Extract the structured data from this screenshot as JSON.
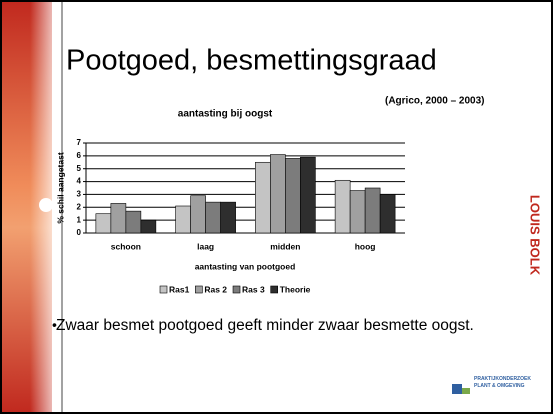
{
  "title": "Pootgoed, besmettingsgraad",
  "source": "(Agrico, 2000 – 2003)",
  "bullet": "Zwaar besmet pootgoed geeft minder zwaar besmette oogst.",
  "logo_right": "LOUIS BOLK",
  "logo_bottom": "PRAKTIJKONDERZOEK PLANT & OMGEVING",
  "chart_data": {
    "type": "bar",
    "title": "aantasting bij oogst",
    "xlabel": "aantasting van pootgoed",
    "ylabel": "% schil aangetast",
    "categories": [
      "schoon",
      "laag",
      "midden",
      "hoog"
    ],
    "series": [
      {
        "name": "Ras1",
        "color": "#c4c4c4",
        "values": [
          1.5,
          2.1,
          5.5,
          4.1
        ]
      },
      {
        "name": "Ras 2",
        "color": "#a0a0a0",
        "values": [
          2.3,
          2.9,
          6.1,
          3.3
        ]
      },
      {
        "name": "Ras 3",
        "color": "#7c7c7c",
        "values": [
          1.7,
          2.4,
          5.8,
          3.5
        ]
      },
      {
        "name": "Theorie",
        "color": "#2e2e2e",
        "values": [
          1.0,
          2.4,
          5.9,
          3.0
        ]
      }
    ],
    "ylim": [
      0,
      7
    ],
    "yticks": [
      0,
      1,
      2,
      3,
      4,
      5,
      6,
      7
    ],
    "grid": true,
    "legend": "bottom"
  }
}
